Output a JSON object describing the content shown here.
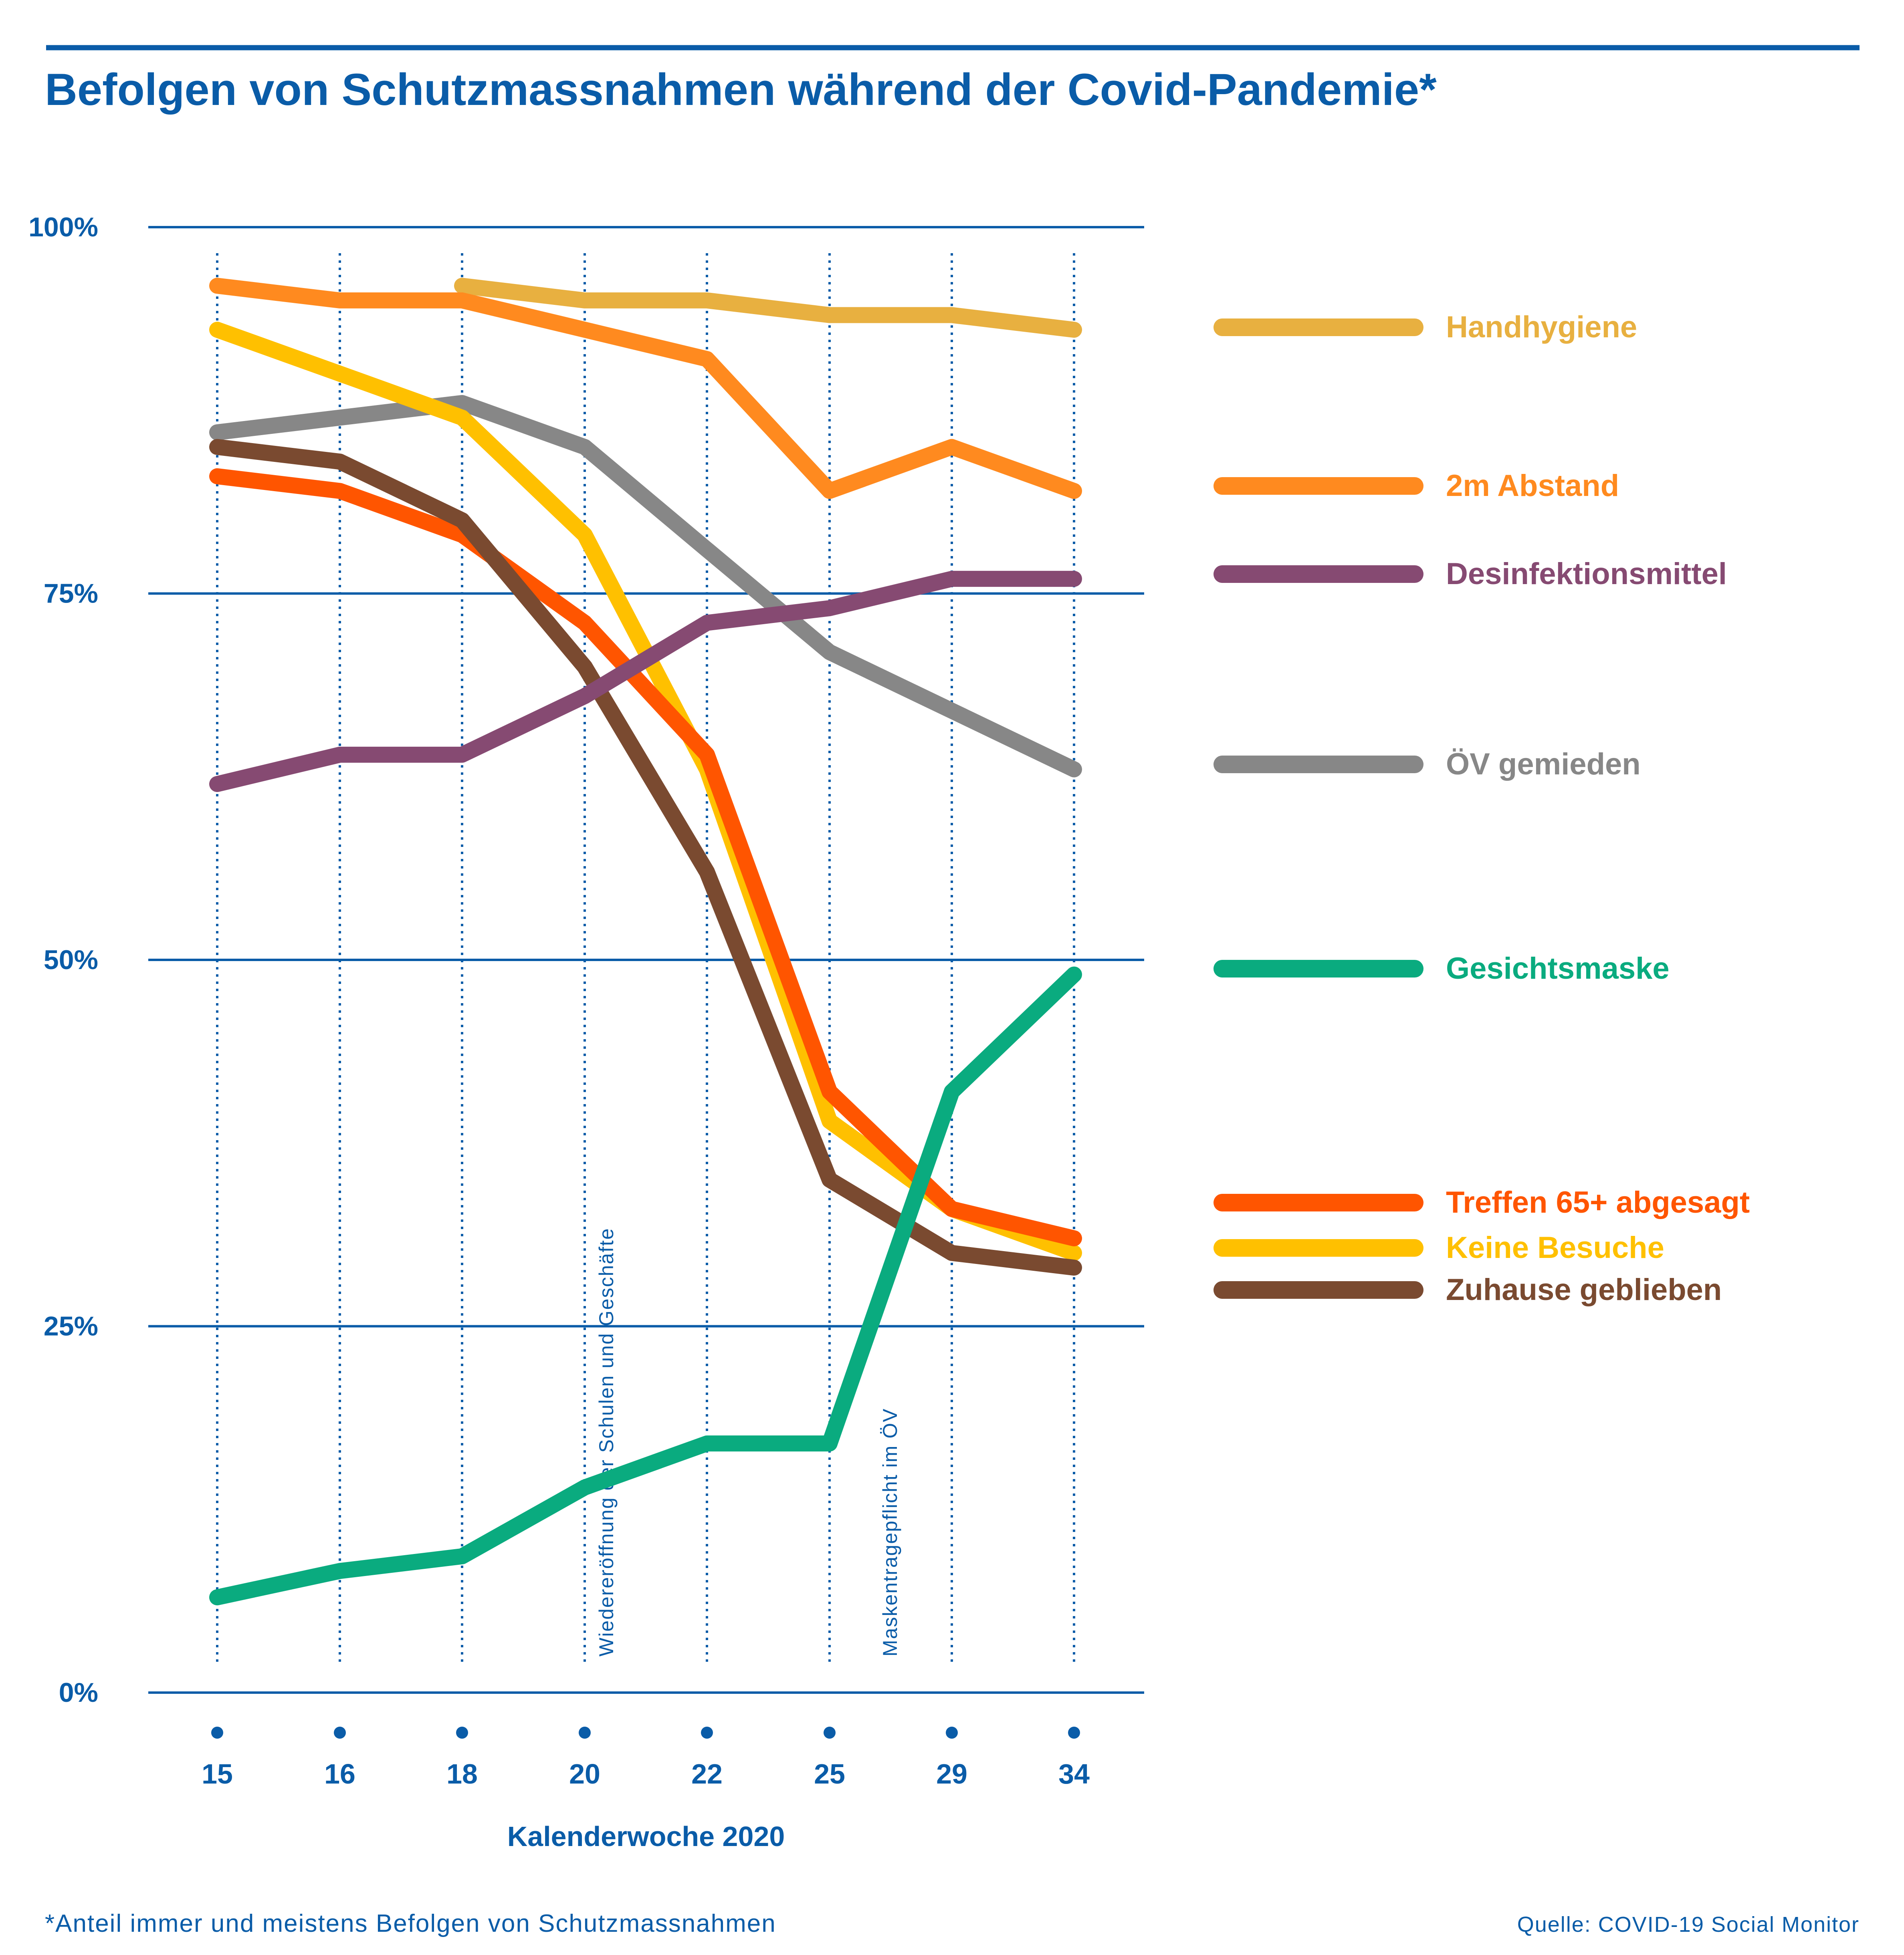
{
  "title": "Befolgen von Schutzmassnahmen während der Covid-Pandemie*",
  "footnote": "*Anteil immer und meistens Befolgen von Schutzmassnahmen",
  "source": "Quelle: COVID-19 Social Monitor",
  "colors": {
    "accent": "#0a5ca8",
    "handhygiene": "#e8b040",
    "abstand": "#ff8a1f",
    "desinfektion": "#864a72",
    "oev": "#878787",
    "maske": "#0aab7f",
    "treffen": "#ff5500",
    "besuche": "#ffc000",
    "zuhause": "#7a4a30"
  },
  "chart_data": {
    "type": "line",
    "title": "Befolgen von Schutzmassnahmen während der Covid-Pandemie*",
    "xlabel": "Kalenderwoche 2020",
    "ylabel": "",
    "x": [
      "15",
      "16",
      "18",
      "20",
      "22",
      "25",
      "29",
      "34"
    ],
    "ylim": [
      0,
      100
    ],
    "yticks": [
      0,
      25,
      50,
      75,
      100
    ],
    "ytick_labels": [
      "0%",
      "25%",
      "50%",
      "75%",
      "100%"
    ],
    "grid": "horizontal solid, vertical dotted",
    "legend": "right",
    "series": [
      {
        "name": "Handhygiene",
        "color": "#e8b040",
        "values": [
          null,
          null,
          96,
          95,
          95,
          94,
          94,
          93
        ]
      },
      {
        "name": "2m Abstand",
        "color": "#ff8a1f",
        "values": [
          96,
          95,
          95,
          93,
          91,
          82,
          85,
          82
        ]
      },
      {
        "name": "Desinfektionsmittel",
        "color": "#864a72",
        "values": [
          62,
          64,
          64,
          68,
          73,
          74,
          76,
          76
        ]
      },
      {
        "name": "ÖV gemieden",
        "color": "#878787",
        "values": [
          86,
          87,
          88,
          85,
          78,
          71,
          67,
          63
        ]
      },
      {
        "name": "Gesichtsmaske",
        "color": "#0aab7f",
        "values": [
          6.5,
          8.3,
          9.3,
          14,
          17,
          17,
          41,
          49
        ]
      },
      {
        "name": "Treffen 65+ abgesagt",
        "color": "#ff5500",
        "values": [
          83,
          82,
          79,
          73,
          64,
          41,
          33,
          31
        ]
      },
      {
        "name": "Keine Besuche",
        "color": "#ffc000",
        "values": [
          93,
          90,
          87,
          79,
          63,
          39,
          33,
          30
        ]
      },
      {
        "name": "Zuhause geblieben",
        "color": "#7a4a30",
        "values": [
          85,
          84,
          80,
          70,
          56,
          35,
          30,
          29
        ]
      }
    ],
    "annotations": [
      {
        "text": "Wiedereröffnung der Schulen und Geschäfte",
        "x": "20"
      },
      {
        "text": "Maskentragepflicht im ÖV",
        "x": "25–29"
      }
    ]
  }
}
